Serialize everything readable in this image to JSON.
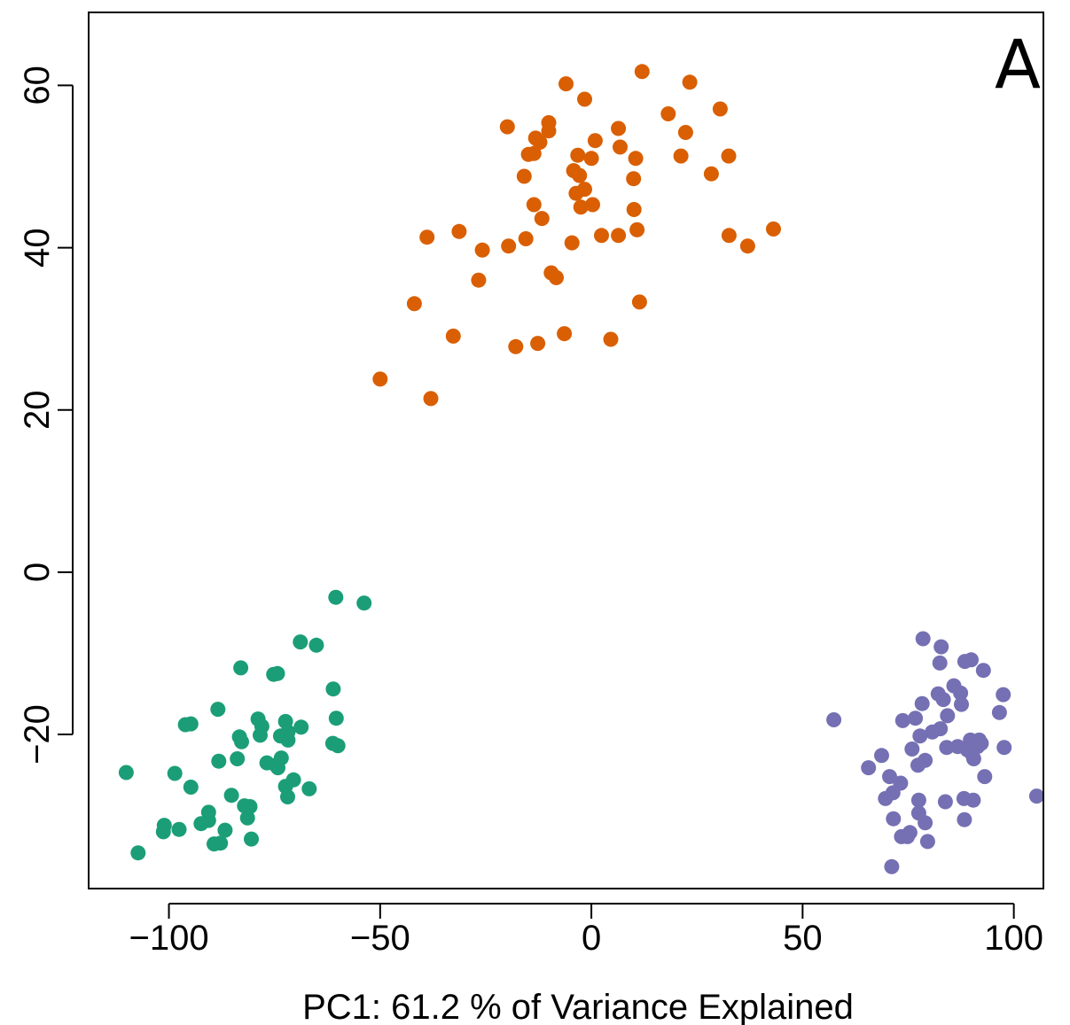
{
  "chart_data": {
    "type": "scatter",
    "xlabel": "PC1: 61.2 % of Variance Explained",
    "ylabel": "",
    "panel_label": "A",
    "xlim": [
      -119,
      107
    ],
    "ylim": [
      -39,
      69
    ],
    "x_ticks": [
      -100,
      -50,
      0,
      50,
      100
    ],
    "x_tick_labels": [
      "−100",
      "−50",
      "0",
      "50",
      "100"
    ],
    "y_ticks": [
      -20,
      0,
      20,
      40,
      60
    ],
    "y_tick_labels": [
      "−20",
      "0",
      "20",
      "40",
      "60"
    ],
    "grid": false,
    "legend": "none",
    "series": [
      {
        "color": "#1b9e77",
        "points": [
          [
            -110.1,
            -24.7
          ],
          [
            -107.3,
            -34.6
          ],
          [
            -101.3,
            -32.0
          ],
          [
            -101.1,
            -31.2
          ],
          [
            -98.6,
            -24.8
          ],
          [
            -97.6,
            -31.7
          ],
          [
            -96.1,
            -18.8
          ],
          [
            -94.8,
            -18.7
          ],
          [
            -94.8,
            -26.5
          ],
          [
            -92.4,
            -31.0
          ],
          [
            -90.6,
            -30.6
          ],
          [
            -90.6,
            -29.6
          ],
          [
            -89.3,
            -33.5
          ],
          [
            -88.4,
            -16.9
          ],
          [
            -88.2,
            -23.3
          ],
          [
            -87.8,
            -33.4
          ],
          [
            -86.7,
            -31.8
          ],
          [
            -85.2,
            -27.5
          ],
          [
            -83.8,
            -23.0
          ],
          [
            -83.3,
            -20.3
          ],
          [
            -83.0,
            -11.8
          ],
          [
            -82.8,
            -20.9
          ],
          [
            -82.1,
            -28.8
          ],
          [
            -81.4,
            -30.3
          ],
          [
            -80.8,
            -28.9
          ],
          [
            -80.5,
            -32.9
          ],
          [
            -78.9,
            -18.1
          ],
          [
            -78.4,
            -20.1
          ],
          [
            -78.0,
            -19.0
          ],
          [
            -76.8,
            -23.5
          ],
          [
            -75.2,
            -12.6
          ],
          [
            -74.7,
            -23.8
          ],
          [
            -74.3,
            -12.5
          ],
          [
            -74.2,
            -24.1
          ],
          [
            -73.6,
            -20.2
          ],
          [
            -73.4,
            -22.9
          ],
          [
            -72.4,
            -26.4
          ],
          [
            -72.4,
            -18.4
          ],
          [
            -71.9,
            -27.7
          ],
          [
            -71.8,
            -20.7
          ],
          [
            -71.8,
            -19.7
          ],
          [
            -70.5,
            -25.6
          ],
          [
            -68.9,
            -8.6
          ],
          [
            -68.7,
            -19.1
          ],
          [
            -66.8,
            -26.7
          ],
          [
            -65.1,
            -9.0
          ],
          [
            -61.2,
            -21.1
          ],
          [
            -61.1,
            -14.4
          ],
          [
            -60.4,
            -18.0
          ],
          [
            -60.0,
            -21.4
          ],
          [
            -60.5,
            -3.1
          ],
          [
            -53.8,
            -3.8
          ]
        ]
      },
      {
        "color": "#d95f02",
        "points": [
          [
            -50.0,
            23.8
          ],
          [
            -41.9,
            33.1
          ],
          [
            -38.9,
            41.3
          ],
          [
            -38.0,
            21.4
          ],
          [
            -32.7,
            29.1
          ],
          [
            -31.3,
            42.0
          ],
          [
            -26.7,
            36.0
          ],
          [
            -25.8,
            39.7
          ],
          [
            -19.9,
            54.9
          ],
          [
            -19.6,
            40.2
          ],
          [
            -17.9,
            27.8
          ],
          [
            -15.9,
            48.8
          ],
          [
            -15.5,
            41.1
          ],
          [
            -14.9,
            51.5
          ],
          [
            -13.6,
            51.6
          ],
          [
            -13.6,
            45.3
          ],
          [
            -13.2,
            53.5
          ],
          [
            -12.7,
            28.2
          ],
          [
            -12.2,
            53.0
          ],
          [
            -11.7,
            43.6
          ],
          [
            -10.1,
            54.4
          ],
          [
            -10.1,
            55.4
          ],
          [
            -9.5,
            36.9
          ],
          [
            -8.3,
            36.3
          ],
          [
            -6.4,
            29.4
          ],
          [
            -6.0,
            60.2
          ],
          [
            -4.6,
            40.6
          ],
          [
            -4.2,
            49.5
          ],
          [
            -3.6,
            46.7
          ],
          [
            -3.2,
            51.4
          ],
          [
            -2.8,
            48.9
          ],
          [
            -2.5,
            45.0
          ],
          [
            -1.6,
            58.3
          ],
          [
            -1.6,
            47.2
          ],
          [
            0.0,
            51.0
          ],
          [
            0.3,
            45.3
          ],
          [
            0.9,
            53.2
          ],
          [
            2.4,
            41.5
          ],
          [
            4.6,
            28.7
          ],
          [
            6.4,
            54.7
          ],
          [
            6.4,
            41.5
          ],
          [
            6.8,
            52.4
          ],
          [
            10.0,
            48.5
          ],
          [
            10.1,
            44.7
          ],
          [
            10.5,
            51.0
          ],
          [
            10.8,
            42.2
          ],
          [
            11.4,
            33.3
          ],
          [
            12.0,
            61.7
          ],
          [
            18.2,
            56.5
          ],
          [
            21.2,
            51.3
          ],
          [
            22.3,
            54.2
          ],
          [
            23.3,
            60.4
          ],
          [
            28.4,
            49.1
          ],
          [
            30.5,
            57.1
          ],
          [
            32.5,
            51.3
          ],
          [
            32.6,
            41.5
          ],
          [
            37.0,
            40.2
          ],
          [
            43.1,
            42.3
          ]
        ]
      },
      {
        "color": "#7570b3",
        "points": [
          [
            57.4,
            -18.2
          ],
          [
            65.6,
            -24.1
          ],
          [
            68.7,
            -22.6
          ],
          [
            69.6,
            -27.9
          ],
          [
            70.6,
            -25.2
          ],
          [
            71.1,
            -36.3
          ],
          [
            71.4,
            -27.2
          ],
          [
            71.5,
            -30.4
          ],
          [
            73.2,
            -26.0
          ],
          [
            73.4,
            -32.6
          ],
          [
            73.7,
            -18.3
          ],
          [
            74.8,
            -32.6
          ],
          [
            75.4,
            -32.1
          ],
          [
            75.9,
            -21.8
          ],
          [
            76.7,
            -18.0
          ],
          [
            77.3,
            -23.8
          ],
          [
            77.5,
            -28.1
          ],
          [
            77.5,
            -29.7
          ],
          [
            77.8,
            -20.2
          ],
          [
            78.3,
            -16.2
          ],
          [
            78.5,
            -8.2
          ],
          [
            79.0,
            -23.2
          ],
          [
            79.0,
            -30.9
          ],
          [
            79.6,
            -33.2
          ],
          [
            80.7,
            -19.7
          ],
          [
            82.1,
            -15.0
          ],
          [
            82.5,
            -11.2
          ],
          [
            82.6,
            -19.3
          ],
          [
            82.8,
            -9.2
          ],
          [
            83.3,
            -15.7
          ],
          [
            83.8,
            -28.3
          ],
          [
            84.1,
            -21.6
          ],
          [
            84.3,
            -17.7
          ],
          [
            85.8,
            -14.0
          ],
          [
            86.7,
            -21.5
          ],
          [
            87.4,
            -14.9
          ],
          [
            87.6,
            -16.3
          ],
          [
            88.2,
            -27.9
          ],
          [
            88.3,
            -30.5
          ],
          [
            88.4,
            -11.0
          ],
          [
            89.0,
            -21.9
          ],
          [
            89.7,
            -20.7
          ],
          [
            89.9,
            -10.8
          ],
          [
            90.1,
            -22.4
          ],
          [
            90.4,
            -28.1
          ],
          [
            90.5,
            -23.0
          ],
          [
            91.4,
            -21.5
          ],
          [
            91.8,
            -20.7
          ],
          [
            92.3,
            -21.1
          ],
          [
            92.8,
            -12.1
          ],
          [
            93.1,
            -25.2
          ],
          [
            96.6,
            -17.3
          ],
          [
            97.5,
            -15.1
          ],
          [
            97.7,
            -21.6
          ],
          [
            105.4,
            -27.6
          ]
        ]
      }
    ]
  }
}
